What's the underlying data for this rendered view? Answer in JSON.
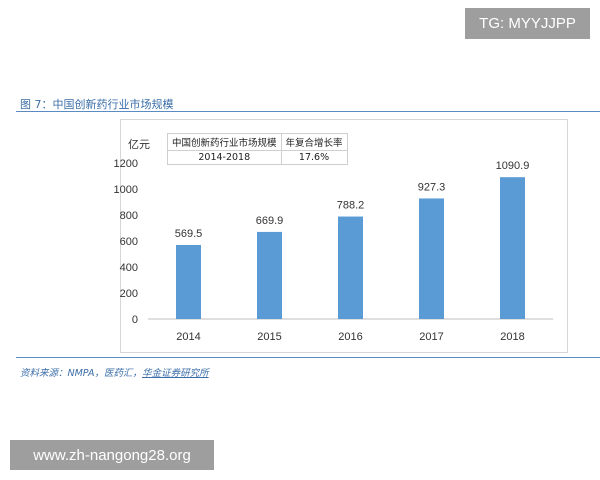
{
  "badge": "TG: MYYJJPP",
  "figure_title": "图 7：中国创新药行业市场规模",
  "inset_table": {
    "row1": [
      "中国创新药行业市场规模",
      "年复合增长率"
    ],
    "row2": [
      "2014-2018",
      "17.6%"
    ]
  },
  "source": {
    "prefix": "资料来源：NMPA，医药汇，",
    "link": "华金证券研究所"
  },
  "watermark": "www.zh-nangong28.org",
  "colors": {
    "bar": "#5b9bd5",
    "accent": "#3b6ea8"
  },
  "chart_data": {
    "type": "bar",
    "categories": [
      "2014",
      "2015",
      "2016",
      "2017",
      "2018"
    ],
    "values": [
      569.5,
      669.9,
      788.2,
      927.3,
      1090.9
    ],
    "value_labels": [
      "569.5",
      "669.9",
      "788.2",
      "927.3",
      "1090.9"
    ],
    "ylabel": "亿元",
    "ylim": [
      0,
      1200
    ],
    "yticks": [
      "0",
      "200",
      "400",
      "600",
      "800",
      "1000",
      "1200"
    ],
    "grid": false,
    "legend": "none"
  }
}
